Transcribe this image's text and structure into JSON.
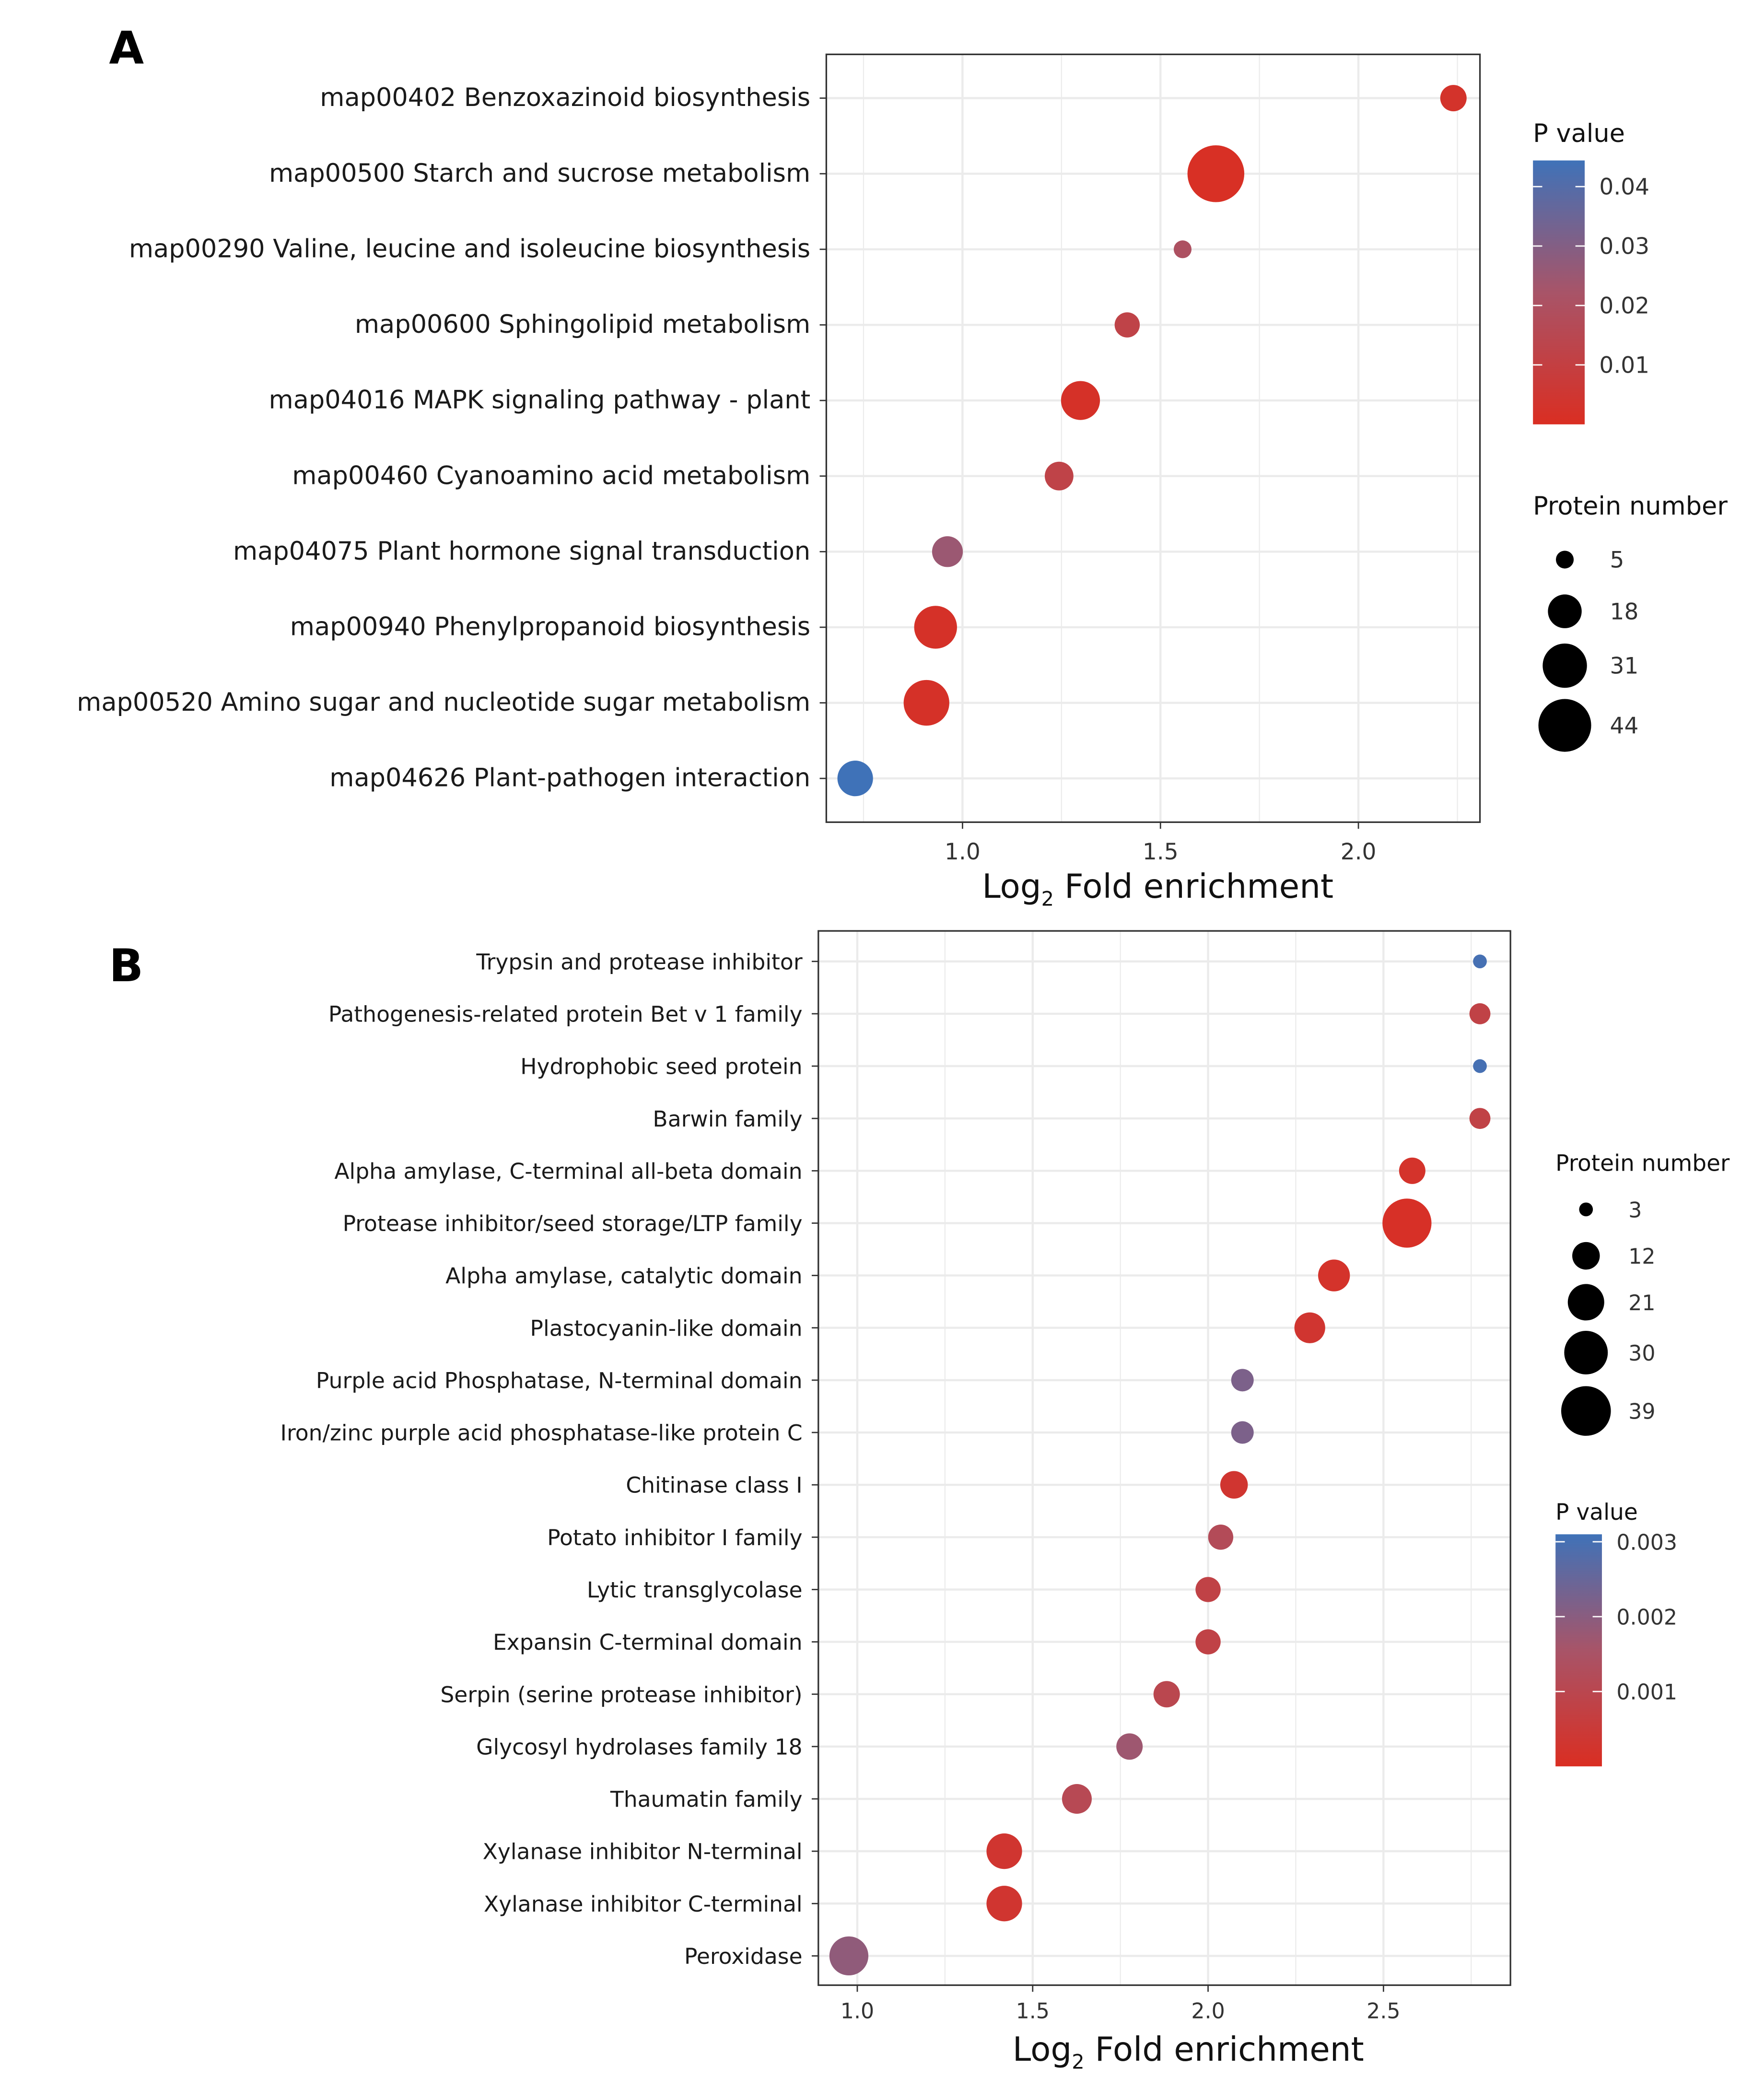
{
  "chart_data": [
    {
      "type": "scatter",
      "panel_label": "A",
      "xlabel": "Log2 Fold enrichment",
      "xlabel_main": "Log",
      "xlabel_sub": "2",
      "xlabel_rest": " Fold enrichment",
      "xlim": [
        0.656,
        2.307
      ],
      "xticks": [
        1.0,
        1.5,
        2.0
      ],
      "xtick_labels": [
        "1.0",
        "1.5",
        "2.0"
      ],
      "grid": true,
      "categories": [
        "map00402 Benzoxazinoid biosynthesis",
        "map00500 Starch and sucrose metabolism",
        "map00290 Valine, leucine and isoleucine biosynthesis",
        "map00600 Sphingolipid metabolism",
        "map04016 MAPK signaling pathway - plant",
        "map00460 Cyanoamino acid metabolism",
        "map04075 Plant hormone signal transduction",
        "map00940 Phenylpropanoid biosynthesis",
        "map00520 Amino sugar and nucleotide sugar metabolism",
        "map04626 Plant-pathogen interaction"
      ],
      "x": [
        2.24,
        1.64,
        1.556,
        1.416,
        1.298,
        1.244,
        0.962,
        0.932,
        0.909,
        0.729
      ],
      "protein_number": [
        11,
        51,
        5,
        10,
        24,
        13,
        15,
        29,
        33,
        20
      ],
      "p_value": [
        0.003,
        0.001,
        0.02,
        0.012,
        0.002,
        0.012,
        0.025,
        0.002,
        0.002,
        0.045
      ],
      "color_legend": {
        "title": "P value",
        "ticks": [
          0.04,
          0.03,
          0.02,
          0.01
        ],
        "tick_labels": [
          "0.04",
          "0.03",
          "0.02",
          "0.01"
        ],
        "range": [
          0,
          0.0444
        ]
      },
      "size_legend": {
        "title": "Protein number",
        "values": [
          5,
          18,
          31,
          44
        ],
        "labels": [
          "5",
          "18",
          "31",
          "44"
        ]
      },
      "legend_placement": "right"
    },
    {
      "type": "scatter",
      "panel_label": "B",
      "xlabel": "Log2 Fold enrichment",
      "xlabel_main": "Log",
      "xlabel_sub": "2",
      "xlabel_rest": " Fold enrichment",
      "xlim": [
        0.889,
        2.862
      ],
      "xticks": [
        1.0,
        1.5,
        2.0,
        2.5
      ],
      "xtick_labels": [
        "1.0",
        "1.5",
        "2.0",
        "2.5"
      ],
      "grid": true,
      "categories": [
        "Trypsin and protease inhibitor",
        "Pathogenesis-related protein Bet v 1 family",
        "Hydrophobic seed protein",
        "Barwin family",
        "Alpha amylase, C-terminal all-beta domain",
        "Protease inhibitor/seed storage/LTP family",
        "Alpha amylase, catalytic domain",
        "Plastocyanin-like domain",
        "Purple acid Phosphatase, N-terminal domain",
        "Iron/zinc purple acid phosphatase-like protein C",
        "Chitinase class I",
        "Potato inhibitor I family",
        "Lytic transglycolase",
        "Expansin C-terminal domain",
        "Serpin (serine protease inhibitor)",
        "Glycosyl hydrolases family 18",
        "Thaumatin family",
        "Xylanase inhibitor N-terminal",
        "Xylanase inhibitor C-terminal",
        "Peroxidase"
      ],
      "x": [
        2.775,
        2.775,
        2.775,
        2.775,
        2.582,
        2.567,
        2.359,
        2.29,
        2.098,
        2.098,
        2.074,
        2.036,
        2.0,
        2.0,
        1.882,
        1.776,
        1.626,
        1.419,
        1.419,
        0.976
      ],
      "protein_number": [
        3,
        7,
        3,
        7,
        11,
        38,
        16,
        15,
        8,
        8,
        12,
        10,
        10,
        10,
        11,
        11,
        14,
        20,
        20,
        24
      ],
      "p_value": [
        0.003,
        0.0008,
        0.003,
        0.0008,
        0.0002,
        0.0001,
        0.0002,
        0.0003,
        0.0022,
        0.0022,
        0.0003,
        0.0012,
        0.0008,
        0.0008,
        0.001,
        0.0017,
        0.0011,
        0.0003,
        0.0003,
        0.0019
      ],
      "color_legend": {
        "title": "P value",
        "ticks": [
          0.003,
          0.002,
          0.001
        ],
        "tick_labels": [
          "0.003",
          "0.002",
          "0.001"
        ],
        "range": [
          0,
          0.0031
        ]
      },
      "size_legend": {
        "title": "Protein number",
        "values": [
          3,
          12,
          21,
          30,
          39
        ],
        "labels": [
          "3",
          "12",
          "21",
          "30",
          "39"
        ]
      },
      "legend_placement": "right"
    }
  ],
  "colors": {
    "low_p": "#DA2E22",
    "high_p": "#3F72B8",
    "grid": "#EBEBEB",
    "border": "#333333",
    "legend_dot": "#000000"
  }
}
